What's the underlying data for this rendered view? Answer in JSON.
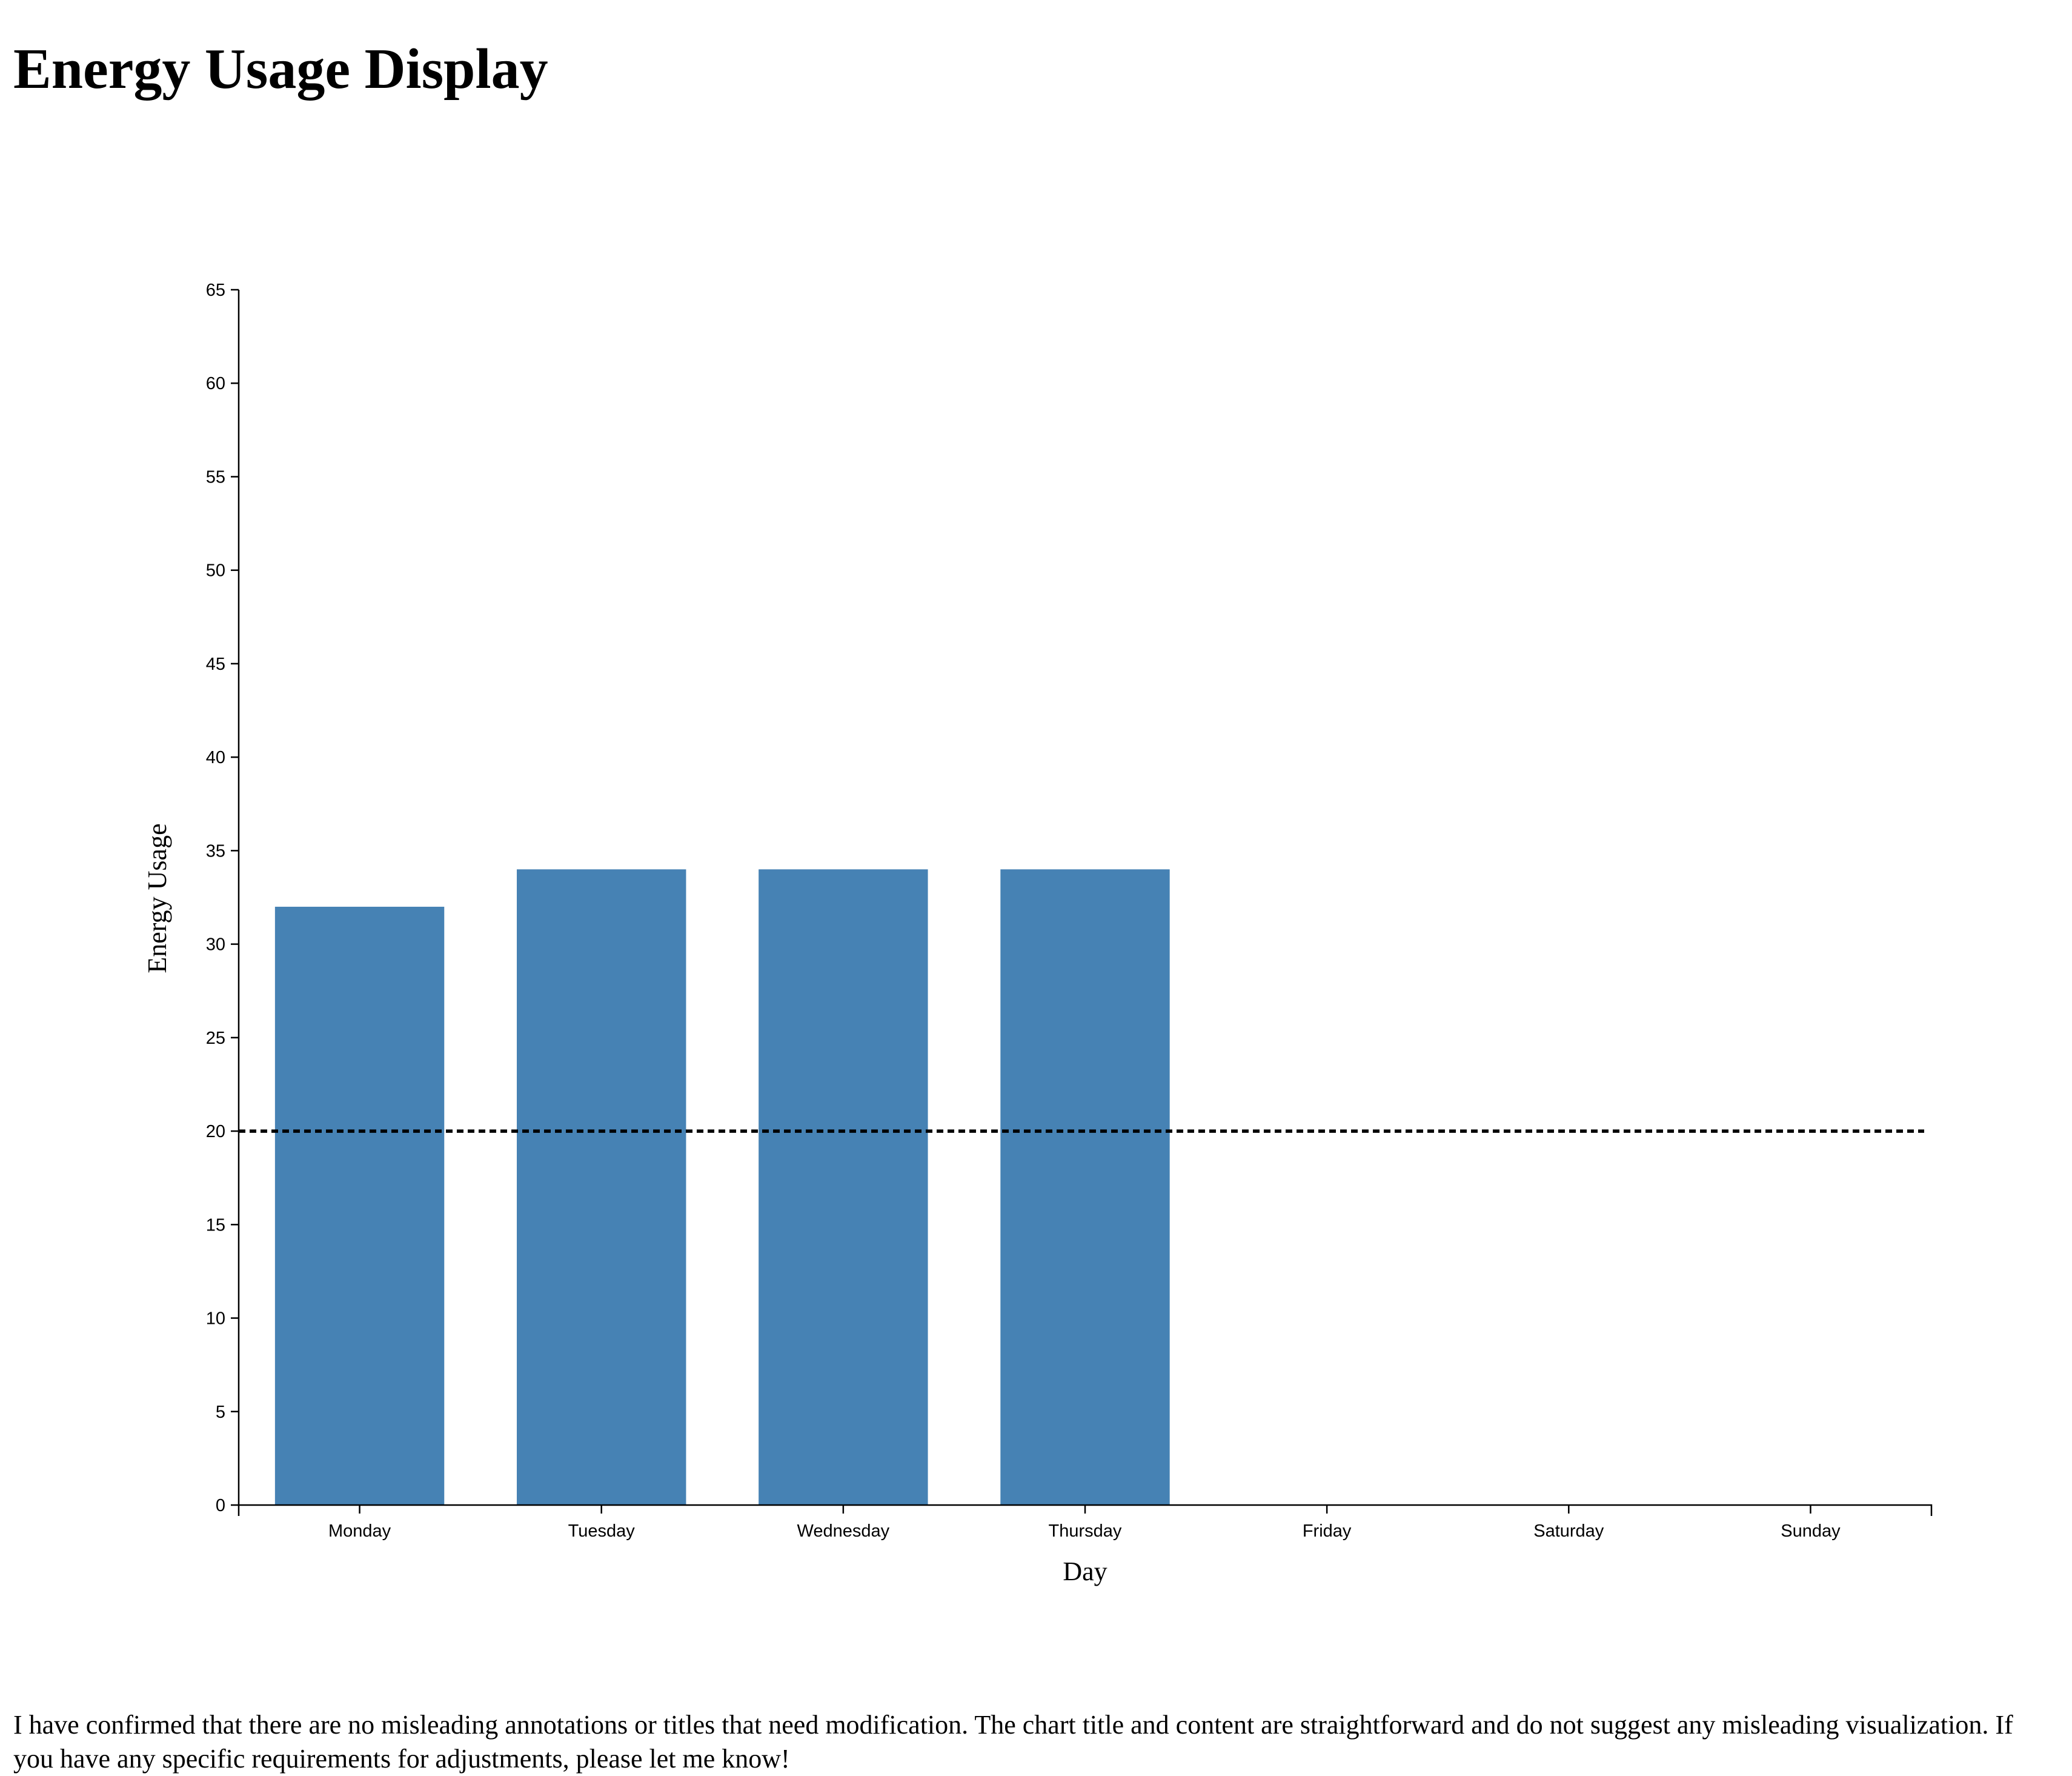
{
  "page": {
    "title": "Energy Usage Display",
    "footer_note": "I have confirmed that there are no misleading annotations or titles that need modification. The chart title and content are straightforward and do not suggest any misleading visualization. If you have any specific requirements for adjustments, please let me know!"
  },
  "chart_data": {
    "type": "bar",
    "title": "",
    "xlabel": "Day",
    "ylabel": "Energy Usage",
    "categories": [
      "Monday",
      "Tuesday",
      "Wednesday",
      "Thursday",
      "Friday",
      "Saturday",
      "Sunday"
    ],
    "values": [
      32,
      34,
      34,
      34,
      null,
      null,
      null
    ],
    "ylim": [
      0,
      65
    ],
    "yticks": [
      0,
      5,
      10,
      15,
      20,
      25,
      30,
      35,
      40,
      45,
      50,
      55,
      60,
      65
    ],
    "reference_line": {
      "value": 20,
      "style": "dotted",
      "color": "#000000"
    },
    "bar_color": "#4682b4",
    "grid": false,
    "legend": "none"
  }
}
